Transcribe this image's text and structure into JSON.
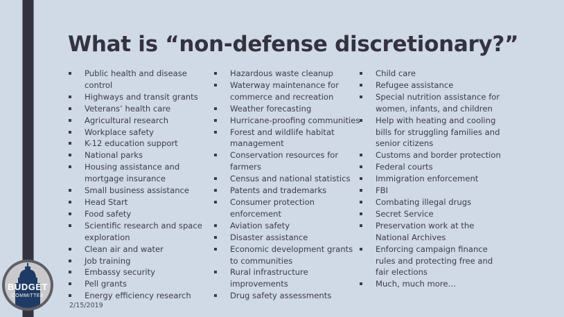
{
  "title": "What is “non-defense discretionary?”",
  "columns": [
    [
      "Public health and disease control",
      "Highways and transit grants",
      "Veterans’ health care",
      "Agricultural research",
      "Workplace safety",
      "K-12 education support",
      "National parks",
      "Housing assistance and mortgage insurance",
      "Small business assistance",
      "Head Start",
      "Food safety",
      "Scientific research and space exploration",
      "Clean air and water",
      "Job training",
      "Embassy security",
      "Pell grants",
      "Energy efficiency research"
    ],
    [
      "Hazardous waste cleanup",
      "Waterway maintenance for commerce and recreation",
      "Weather forecasting",
      "Hurricane-proofing communities",
      "Forest and wildlife habitat management",
      "Conservation resources for farmers",
      "Census and national statistics",
      "Patents and trademarks",
      "Consumer protection enforcement",
      "Aviation safety",
      "Disaster assistance",
      "Economic development grants to communities",
      "Rural infrastructure improvements",
      "Drug safety assessments"
    ],
    [
      "Child care",
      "Refugee assistance",
      "Special nutrition assistance for women, infants, and children",
      "Help with heating and cooling bills for struggling families and senior citizens",
      "Customs and border protection",
      "Federal courts",
      "Immigration enforcement",
      "FBI",
      "Combating illegal drugs",
      "Secret Service",
      "Preservation work at the National Archives",
      "Enforcing campaign finance rules and protecting free and fair elections",
      "Much, much more…"
    ]
  ],
  "date": "2/15/2019",
  "logo": {
    "line1": "BUDGET",
    "line2": "COMMITTEE"
  },
  "colors": {
    "background": "#cfdae6",
    "accent": "#35323f",
    "logo_blue": "#1f3a64"
  }
}
